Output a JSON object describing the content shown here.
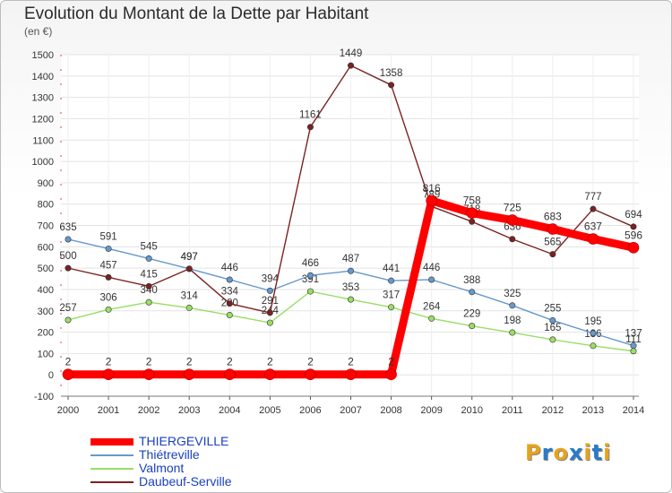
{
  "header": {
    "title": "Evolution du Montant de la Dette par Habitant",
    "subtitle": "(en €)"
  },
  "logo": {
    "text": "Proxiti",
    "colors": [
      "#e8a21a",
      "#2a7bc8",
      "#e8a21a",
      "#2a7bc8",
      "#e8a21a",
      "#2a7bc8",
      "#e8a21a"
    ]
  },
  "chart_data": {
    "type": "line",
    "title": "Evolution du Montant de la Dette par Habitant",
    "subtitle": "(en €)",
    "x": [
      "2000",
      "2001",
      "2002",
      "2003",
      "2004",
      "2005",
      "2006",
      "2007",
      "2008",
      "2009",
      "2010",
      "2011",
      "2012",
      "2013",
      "2014"
    ],
    "ylim": [
      -100,
      1500
    ],
    "yticks": [
      -100,
      0,
      100,
      200,
      300,
      400,
      500,
      600,
      700,
      800,
      900,
      1000,
      1100,
      1200,
      1300,
      1400,
      1500
    ],
    "grid": true,
    "legend_position": "bottom-left",
    "series": [
      {
        "name": "THIERGEVILLE",
        "color": "#ff0000",
        "values": [
          2,
          2,
          2,
          2,
          2,
          2,
          2,
          2,
          2,
          816,
          758,
          725,
          683,
          637,
          596
        ]
      },
      {
        "name": "Thiétreville",
        "color": "#6699cc",
        "values": [
          635,
          591,
          545,
          497,
          446,
          394,
          466,
          487,
          441,
          446,
          388,
          325,
          255,
          195,
          137
        ]
      },
      {
        "name": "Valmont",
        "color": "#99dd66",
        "values": [
          257,
          306,
          340,
          314,
          280,
          244,
          391,
          353,
          317,
          264,
          229,
          198,
          165,
          136,
          111
        ]
      },
      {
        "name": "Daubeuf-Serville",
        "color": "#7a2222",
        "values": [
          500,
          457,
          415,
          497,
          334,
          291,
          1161,
          1449,
          1358,
          789,
          718,
          636,
          565,
          777,
          694
        ]
      }
    ]
  }
}
